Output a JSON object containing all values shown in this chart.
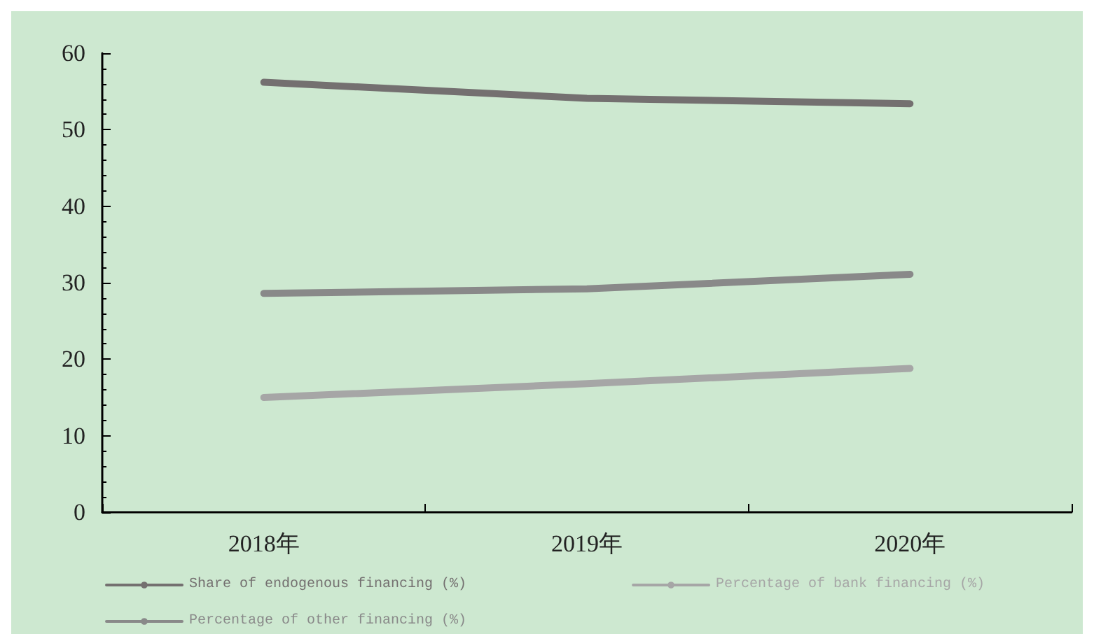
{
  "chart_data": {
    "type": "line",
    "categories": [
      "2018年",
      "2019年",
      "2020年"
    ],
    "series": [
      {
        "name": "Share of endogenous financing (%)",
        "color": "#747070",
        "values": [
          56.2,
          54.1,
          53.4
        ]
      },
      {
        "name": "Percentage of bank financing (%)",
        "color": "#a6a6a6",
        "values": [
          15.0,
          16.8,
          18.8
        ]
      },
      {
        "name": "Percentage of other financing (%)",
        "color": "#898989",
        "values": [
          28.6,
          29.2,
          31.1
        ]
      }
    ],
    "ylim": [
      0,
      60
    ],
    "yticks": [
      0,
      10,
      20,
      30,
      40,
      50,
      60
    ],
    "grid": false,
    "legend": "bottom",
    "marker": "none",
    "line_style": "solid"
  }
}
